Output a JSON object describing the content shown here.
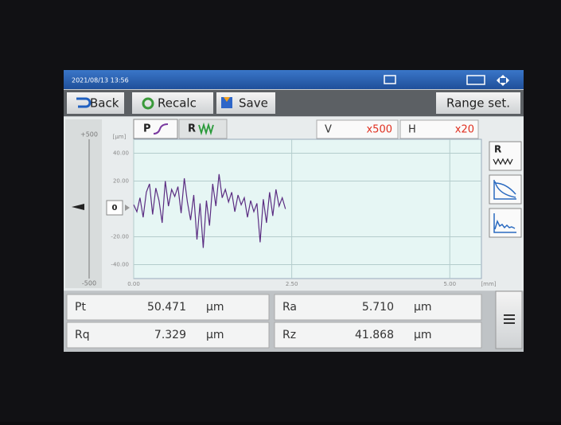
{
  "status_bar": {
    "datetime": "2021/08/13 13:56"
  },
  "toolbar": {
    "back": "Back",
    "recalc": "Recalc",
    "save": "Save",
    "range_set": "Range set."
  },
  "tabs": {
    "p": "P",
    "r": "R"
  },
  "magnification": {
    "v_label": "V",
    "v_value": "x500",
    "h_label": "H",
    "h_value": "x20"
  },
  "range_scale": {
    "top": "+500",
    "bottom": "-500",
    "zero": "0"
  },
  "side_buttons": {
    "r": "R"
  },
  "chart_data": {
    "type": "line",
    "y_unit": "[µm]",
    "x_unit": "[mm]",
    "color": "#5b2d82",
    "x": [
      0,
      0.05,
      0.1,
      0.15,
      0.2,
      0.25,
      0.3,
      0.35,
      0.4,
      0.45,
      0.5,
      0.55,
      0.6,
      0.65,
      0.7,
      0.75,
      0.8,
      0.85,
      0.9,
      0.95,
      1,
      1.05,
      1.1,
      1.15,
      1.2,
      1.25,
      1.3,
      1.35,
      1.4,
      1.45,
      1.5,
      1.55,
      1.6,
      1.65,
      1.7,
      1.75,
      1.8,
      1.85,
      1.9,
      1.95,
      2,
      2.05,
      2.1,
      2.15,
      2.2,
      2.25,
      2.3,
      2.35,
      2.4
    ],
    "values": [
      3,
      -2,
      8,
      -6,
      12,
      18,
      -4,
      15,
      6,
      -10,
      20,
      2,
      14,
      9,
      16,
      -3,
      22,
      5,
      -8,
      10,
      -22,
      4,
      -28,
      6,
      -12,
      18,
      2,
      25,
      8,
      14,
      5,
      12,
      -2,
      10,
      3,
      8,
      -6,
      6,
      -2,
      4,
      -24,
      7,
      -10,
      12,
      -5,
      14,
      2,
      8,
      0
    ],
    "xlim": [
      0,
      5.5
    ],
    "ylim": [
      -50,
      50
    ],
    "xticks": [
      {
        "value": 0,
        "label": "0.00"
      },
      {
        "value": 2.5,
        "label": "2.50"
      },
      {
        "value": 5,
        "label": "5.00"
      }
    ],
    "yticks": [
      {
        "value": -40,
        "label": "-40.00"
      },
      {
        "value": -20,
        "label": "-20.00"
      },
      {
        "value": 20,
        "label": "20.00"
      },
      {
        "value": 40,
        "label": "40.00"
      }
    ],
    "grid": true
  },
  "results": [
    [
      {
        "name": "Pt",
        "value": "50.471",
        "unit": "µm"
      },
      {
        "name": "Ra",
        "value": "5.710",
        "unit": "µm"
      }
    ],
    [
      {
        "name": "Rq",
        "value": "7.329",
        "unit": "µm"
      },
      {
        "name": "Rz",
        "value": "41.868",
        "unit": "µm"
      }
    ]
  ]
}
